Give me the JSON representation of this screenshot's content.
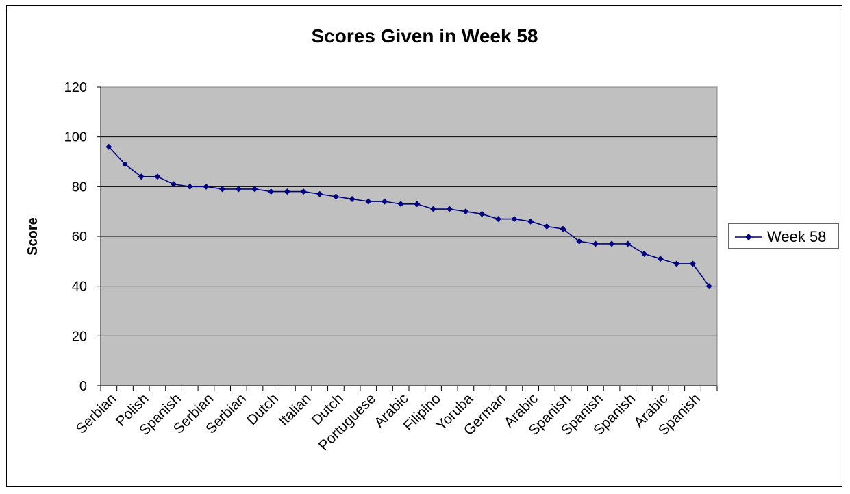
{
  "chart_data": {
    "type": "line",
    "title": "Scores Given in Week 58",
    "xlabel": "",
    "ylabel": "Score",
    "ylim": [
      0,
      120
    ],
    "yticks": [
      0,
      20,
      40,
      60,
      80,
      100,
      120
    ],
    "grid": true,
    "legend_position": "right",
    "categories": [
      "Serbian",
      "",
      "Polish",
      "",
      "Spanish",
      "",
      "Serbian",
      "",
      "Serbian",
      "",
      "Dutch",
      "",
      "Italian",
      "",
      "Dutch",
      "",
      "Portuguese",
      "",
      "Arabic",
      "",
      "Filipino",
      "",
      "Yoruba",
      "",
      "German",
      "",
      "Arabic",
      "",
      "Spanish",
      "",
      "Spanish",
      "",
      "Spanish",
      "",
      "Arabic",
      "",
      "Spanish",
      ""
    ],
    "series": [
      {
        "name": "Week 58",
        "color": "#000080",
        "values": [
          96,
          89,
          84,
          84,
          81,
          80,
          80,
          79,
          79,
          79,
          78,
          78,
          78,
          77,
          76,
          75,
          74,
          74,
          73,
          73,
          71,
          71,
          70,
          69,
          67,
          67,
          66,
          64,
          63,
          58,
          57,
          57,
          57,
          53,
          51,
          49,
          49,
          40
        ]
      }
    ],
    "colors": {
      "plot_background": "#c0c0c0",
      "gridline": "#000000",
      "series": "#000080"
    }
  }
}
